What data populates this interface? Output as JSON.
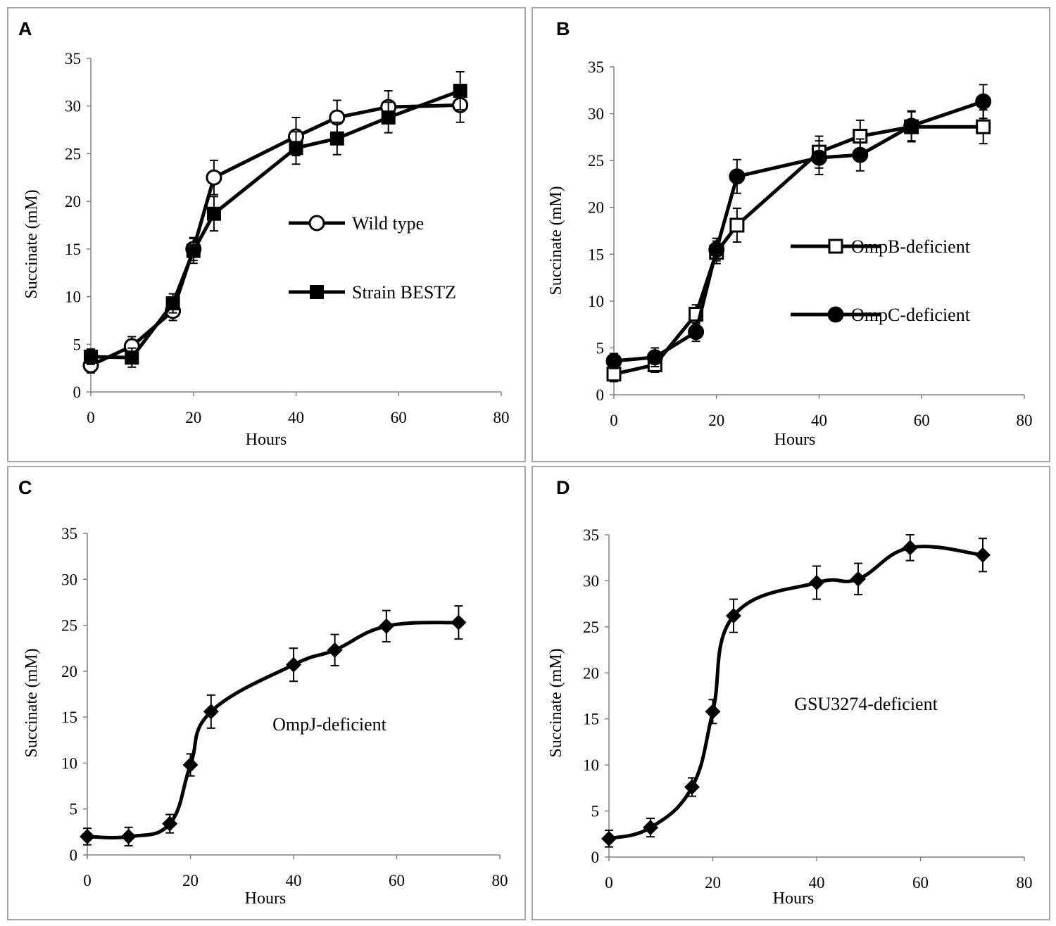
{
  "chart_data": [
    {
      "type": "line",
      "panel": "A",
      "xlabel": "Hours",
      "ylabel": "Succinate (mM)",
      "xlim": [
        0,
        80
      ],
      "ylim": [
        0,
        35
      ],
      "xticks": [
        0,
        20,
        40,
        60,
        80
      ],
      "yticks": [
        0,
        5,
        10,
        15,
        20,
        25,
        30,
        35
      ],
      "legend": "center-right",
      "annotation": "",
      "series": [
        {
          "name": "Wild type",
          "marker": "circle-open",
          "x": [
            0,
            8,
            16,
            20,
            24,
            40,
            48,
            58,
            72
          ],
          "y": [
            2.8,
            4.8,
            8.5,
            15.0,
            22.5,
            26.8,
            28.8,
            29.9,
            30.1
          ],
          "err": [
            0.8,
            1.0,
            1.0,
            1.2,
            1.8,
            2.0,
            1.8,
            1.7,
            1.8
          ]
        },
        {
          "name": "Strain BESTZ",
          "marker": "square-filled",
          "x": [
            0,
            8,
            16,
            20,
            24,
            40,
            48,
            58,
            72
          ],
          "y": [
            3.7,
            3.6,
            9.3,
            14.8,
            18.7,
            25.6,
            26.6,
            28.8,
            31.6
          ],
          "err": [
            0.8,
            1.0,
            1.0,
            1.3,
            1.8,
            1.7,
            1.7,
            1.6,
            2.0
          ]
        }
      ]
    },
    {
      "type": "line",
      "panel": "B",
      "xlabel": "Hours",
      "ylabel": "Succinate (mM)",
      "xlim": [
        0,
        80
      ],
      "ylim": [
        0,
        35
      ],
      "xticks": [
        0,
        20,
        40,
        60,
        80
      ],
      "yticks": [
        0,
        5,
        10,
        15,
        20,
        25,
        30,
        35
      ],
      "legend": "center-right",
      "annotation": "",
      "series": [
        {
          "name": "OmpB-deficient",
          "marker": "square-open",
          "x": [
            0,
            8,
            16,
            20,
            24,
            40,
            48,
            58,
            72
          ],
          "y": [
            2.2,
            3.2,
            8.6,
            15.2,
            18.1,
            25.9,
            27.6,
            28.6,
            28.6
          ],
          "err": [
            0.8,
            0.8,
            1.0,
            1.2,
            1.8,
            1.7,
            1.7,
            1.6,
            1.8
          ]
        },
        {
          "name": "OmpC-deficient",
          "marker": "circle-filled",
          "x": [
            0,
            8,
            16,
            20,
            24,
            40,
            48,
            58,
            72
          ],
          "y": [
            3.6,
            4.0,
            6.7,
            15.5,
            23.3,
            25.3,
            25.6,
            28.7,
            31.3
          ],
          "err": [
            0.8,
            1.0,
            1.0,
            1.2,
            1.8,
            1.8,
            1.7,
            1.6,
            1.8
          ]
        }
      ]
    },
    {
      "type": "line",
      "panel": "C",
      "xlabel": "Hours",
      "ylabel": "Succinate (mM)",
      "xlim": [
        0,
        80
      ],
      "ylim": [
        0,
        35
      ],
      "xticks": [
        0,
        20,
        40,
        60,
        80
      ],
      "yticks": [
        0,
        5,
        10,
        15,
        20,
        25,
        30,
        35
      ],
      "legend": "",
      "annotation": "OmpJ-deficient",
      "series": [
        {
          "name": "OmpJ-deficient",
          "marker": "diamond-filled",
          "x": [
            0,
            8,
            16,
            20,
            24,
            40,
            48,
            58,
            72
          ],
          "y": [
            2.0,
            2.0,
            3.4,
            9.8,
            15.6,
            20.7,
            22.3,
            24.9,
            25.3
          ],
          "err": [
            0.9,
            1.0,
            1.0,
            1.2,
            1.8,
            1.8,
            1.7,
            1.7,
            1.8
          ]
        }
      ]
    },
    {
      "type": "line",
      "panel": "D",
      "xlabel": "Hours",
      "ylabel": "Succinate (mM)",
      "xlim": [
        0,
        80
      ],
      "ylim": [
        0,
        35
      ],
      "xticks": [
        0,
        20,
        40,
        60,
        80
      ],
      "yticks": [
        0,
        5,
        10,
        15,
        20,
        25,
        30,
        35
      ],
      "legend": "",
      "annotation": "GSU3274-deficient",
      "series": [
        {
          "name": "GSU3274-deficient",
          "marker": "diamond-filled",
          "x": [
            0,
            8,
            16,
            20,
            24,
            40,
            48,
            58,
            72
          ],
          "y": [
            2.0,
            3.2,
            7.6,
            15.8,
            26.2,
            29.8,
            30.2,
            33.6,
            32.8
          ],
          "err": [
            0.9,
            1.0,
            1.0,
            1.3,
            1.8,
            1.8,
            1.7,
            1.4,
            1.8
          ]
        }
      ]
    }
  ]
}
